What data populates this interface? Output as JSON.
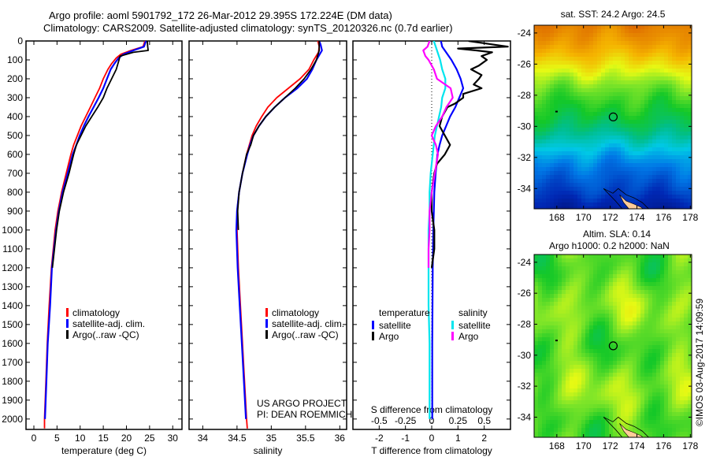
{
  "header": {
    "title_line1": "Argo profile: aoml 5901792_172 26-Mar-2012 29.395S 172.224E (DM data)",
    "title_line2": "Climatology: CARS2009. Satellite-adjusted climatology: synTS_20120326.nc (0.7d earlier)"
  },
  "colors": {
    "climatology": "#ff0000",
    "satellite": "#0000ff",
    "argo": "#000000",
    "sal_satellite": "#00e5ee",
    "sal_argo": "#ff00ff"
  },
  "chart_data": [
    {
      "type": "line",
      "name": "temperature-profile",
      "xlabel": "temperature (deg C)",
      "ylabel": "",
      "xlim": [
        -1.7,
        32
      ],
      "ylim": [
        2055,
        0
      ],
      "xticks": [
        0,
        5,
        10,
        15,
        20,
        25,
        30
      ],
      "yticks": [
        0,
        100,
        200,
        300,
        400,
        500,
        600,
        700,
        800,
        900,
        1000,
        1100,
        1200,
        1300,
        1400,
        1500,
        1600,
        1700,
        1800,
        1900,
        2000
      ],
      "legend": [
        "climatology",
        "satellite-adj. clim.",
        "Argo(..raw -QC)"
      ],
      "legend_placement": "middle-center",
      "series": [
        {
          "name": "climatology",
          "color": "#ff0000",
          "depth": [
            0,
            30,
            50,
            70,
            90,
            120,
            150,
            200,
            250,
            300,
            350,
            400,
            450,
            500,
            550,
            600,
            700,
            800,
            900,
            1000,
            1200,
            1400,
            1600,
            1800,
            2000,
            2050
          ],
          "values": [
            24.0,
            23.6,
            21.0,
            18.8,
            17.8,
            16.8,
            16.0,
            15.0,
            14.2,
            13.2,
            12.2,
            11.2,
            10.2,
            9.4,
            8.6,
            8.0,
            7.0,
            6.0,
            5.2,
            4.6,
            3.8,
            3.3,
            2.9,
            2.6,
            2.3,
            2.3
          ]
        },
        {
          "name": "satellite-adj. clim.",
          "color": "#0000ff",
          "depth": [
            0,
            30,
            50,
            70,
            90,
            120,
            150,
            200,
            250,
            300,
            350,
            400,
            450,
            500,
            550,
            600,
            700,
            800,
            900,
            1000,
            1200,
            1400,
            1600,
            1800,
            2000
          ],
          "values": [
            24.2,
            23.8,
            21.5,
            19.4,
            18.3,
            17.4,
            16.6,
            15.8,
            15.0,
            14.0,
            12.9,
            11.8,
            10.8,
            9.9,
            9.2,
            8.4,
            7.3,
            6.2,
            5.4,
            4.8,
            3.9,
            3.5,
            3.0,
            2.7,
            2.4
          ]
        },
        {
          "name": "Argo(..raw -QC)",
          "color": "#000000",
          "depth": [
            0,
            30,
            50,
            60,
            80,
            100,
            150,
            200,
            250,
            300,
            350,
            400,
            450,
            500,
            550,
            600,
            700,
            800,
            900,
            1000,
            1200
          ],
          "values": [
            24.5,
            24.6,
            24.7,
            21.5,
            18.6,
            18.4,
            17.8,
            16.8,
            15.8,
            15.0,
            13.8,
            12.5,
            11.2,
            10.2,
            9.2,
            8.6,
            7.6,
            6.4,
            5.5,
            4.9,
            4.0
          ]
        }
      ]
    },
    {
      "type": "line",
      "name": "salinity-profile",
      "xlabel": "salinity",
      "xlim": [
        33.8,
        36.1
      ],
      "ylim": [
        2055,
        0
      ],
      "xticks": [
        34,
        34.5,
        35,
        35.5,
        36
      ],
      "legend": [
        "climatology",
        "satellite-adj. clim.",
        "Argo(..raw -QC)"
      ],
      "legend_placement": "middle-right",
      "annotation": [
        "US ARGO PROJECT",
        "PI: DEAN ROEMMICH"
      ],
      "series": [
        {
          "name": "climatology",
          "color": "#ff0000",
          "depth": [
            0,
            30,
            60,
            100,
            150,
            200,
            250,
            300,
            350,
            400,
            450,
            500,
            550,
            600,
            700,
            800,
            900,
            1000,
            1200,
            1400,
            1600,
            1800,
            2000,
            2050
          ],
          "values": [
            35.68,
            35.7,
            35.69,
            35.62,
            35.55,
            35.42,
            35.25,
            35.08,
            34.95,
            34.86,
            34.78,
            34.72,
            34.68,
            34.64,
            34.58,
            34.53,
            34.5,
            34.5,
            34.52,
            34.55,
            34.58,
            34.61,
            34.64,
            34.65
          ]
        },
        {
          "name": "satellite-adj. clim.",
          "color": "#0000ff",
          "depth": [
            0,
            20,
            50,
            100,
            150,
            200,
            250,
            300,
            350,
            400,
            450,
            500,
            550,
            600,
            700,
            800,
            900,
            1000,
            1200,
            1400,
            1600,
            1800,
            2000
          ],
          "values": [
            35.7,
            35.72,
            35.74,
            35.66,
            35.6,
            35.52,
            35.38,
            35.2,
            35.05,
            34.92,
            34.82,
            34.74,
            34.69,
            34.65,
            34.58,
            34.53,
            34.5,
            34.49,
            34.51,
            34.54,
            34.57,
            34.6,
            34.63
          ]
        },
        {
          "name": "Argo(..raw -QC)",
          "color": "#000000",
          "depth": [
            0,
            50,
            100,
            150,
            200,
            250,
            300,
            350,
            400,
            450,
            500,
            550,
            600,
            700,
            800,
            900,
            1000
          ],
          "values": [
            35.7,
            35.7,
            35.66,
            35.58,
            35.48,
            35.35,
            35.2,
            35.05,
            34.92,
            34.82,
            34.74,
            34.7,
            34.64,
            34.58,
            34.53,
            34.51,
            34.52
          ]
        }
      ]
    },
    {
      "type": "line",
      "name": "difference-profile",
      "xlabel": "T difference from climatology",
      "xlabel2": "S difference from climatology",
      "xlim": [
        -3,
        3
      ],
      "x2lim": [
        -0.75,
        0.75
      ],
      "ylim": [
        2055,
        0
      ],
      "xticks": [
        -2,
        -1,
        0,
        1,
        2
      ],
      "x2ticks": [
        -0.5,
        -0.25,
        0,
        0.25,
        0.5
      ],
      "x2ticklabels": [
        "-0.5",
        "-0.25",
        "0",
        "0.25",
        "0.5"
      ],
      "legend_temperature": {
        "heading": "temperature",
        "items": [
          "satellite",
          "Argo"
        ]
      },
      "legend_salinity": {
        "heading": "salinity",
        "items": [
          "satellite",
          "Argo"
        ]
      },
      "series": [
        {
          "name": "T satellite",
          "axis": "T",
          "color": "#0000ff",
          "depth": [
            0,
            30,
            60,
            100,
            150,
            200,
            250,
            300,
            350,
            400,
            450,
            500,
            550,
            600,
            700,
            800,
            900,
            1000,
            1100,
            1200,
            1400,
            1600,
            1800,
            2000
          ],
          "values": [
            0.35,
            0.4,
            0.55,
            0.75,
            0.95,
            1.1,
            1.2,
            1.05,
            0.9,
            0.7,
            0.55,
            0.4,
            0.3,
            0.22,
            0.15,
            0.1,
            0.08,
            0.06,
            0.05,
            0.04,
            0.03,
            0.02,
            0.02,
            0.02
          ]
        },
        {
          "name": "T Argo",
          "axis": "T",
          "color": "#000000",
          "depth": [
            0,
            20,
            30,
            40,
            50,
            60,
            80,
            100,
            130,
            150,
            180,
            200,
            230,
            250,
            280,
            300,
            330,
            350,
            400,
            450,
            500,
            550,
            600,
            650,
            700,
            800,
            900,
            1000,
            1100,
            1200
          ],
          "values": [
            1.4,
            2.4,
            2.9,
            1.0,
            1.7,
            2.3,
            1.9,
            2.1,
            1.8,
            1.5,
            1.9,
            1.8,
            1.6,
            1.9,
            1.2,
            1.2,
            0.9,
            0.6,
            0.4,
            0.3,
            0.5,
            0.7,
            0.5,
            0.2,
            0.1,
            0.0,
            0.0,
            0.1,
            0.1,
            0.0
          ]
        },
        {
          "name": "S satellite",
          "axis": "S",
          "color": "#00e5ee",
          "depth": [
            0,
            50,
            100,
            150,
            200,
            250,
            300,
            350,
            400,
            450,
            500,
            600,
            700,
            800,
            900,
            1000,
            1200,
            1400,
            1600,
            1800,
            2000
          ],
          "values": [
            0.02,
            0.05,
            0.08,
            0.1,
            0.13,
            0.13,
            0.1,
            0.09,
            0.07,
            0.05,
            0.03,
            0.01,
            -0.01,
            -0.02,
            -0.02,
            -0.03,
            -0.03,
            -0.03,
            -0.02,
            -0.02,
            -0.02
          ]
        },
        {
          "name": "S Argo",
          "axis": "S",
          "color": "#ff00ff",
          "depth": [
            0,
            30,
            50,
            80,
            100,
            150,
            200,
            250,
            300,
            350,
            400,
            450,
            500,
            550,
            600,
            700,
            800,
            900,
            1000,
            1100,
            1200
          ],
          "values": [
            -0.02,
            -0.04,
            -0.08,
            -0.06,
            -0.03,
            0.02,
            0.05,
            0.18,
            0.2,
            0.14,
            0.1,
            0.04,
            0.0,
            0.04,
            0.06,
            0.03,
            0.0,
            -0.02,
            -0.02,
            -0.03,
            -0.03
          ]
        }
      ]
    },
    {
      "type": "heatmap",
      "name": "sst-map",
      "title": "sat. SST: 24.2 Argo: 24.5",
      "xlim": [
        166.3,
        178.1
      ],
      "ylim": [
        -35.3,
        -23.5
      ],
      "xticks": [
        168,
        170,
        172,
        174,
        176,
        178
      ],
      "yticks": [
        -24,
        -26,
        -28,
        -30,
        -32,
        -34
      ],
      "profile_location": {
        "lon": 172.224,
        "lat": -29.395
      }
    },
    {
      "type": "heatmap",
      "name": "sla-map",
      "title": "Altim. SLA: 0.14",
      "subtitle": "Argo h1000: 0.2 h2000: NaN",
      "xlim": [
        166.3,
        178.1
      ],
      "ylim": [
        -35.3,
        -23.5
      ],
      "xticks": [
        168,
        170,
        172,
        174,
        176,
        178
      ],
      "yticks": [
        -24,
        -26,
        -28,
        -30,
        -32,
        -34
      ],
      "profile_location": {
        "lon": 172.224,
        "lat": -29.395
      }
    }
  ],
  "footer": {
    "credit": "©IMOS 03-Aug-2017 14:09:59"
  }
}
